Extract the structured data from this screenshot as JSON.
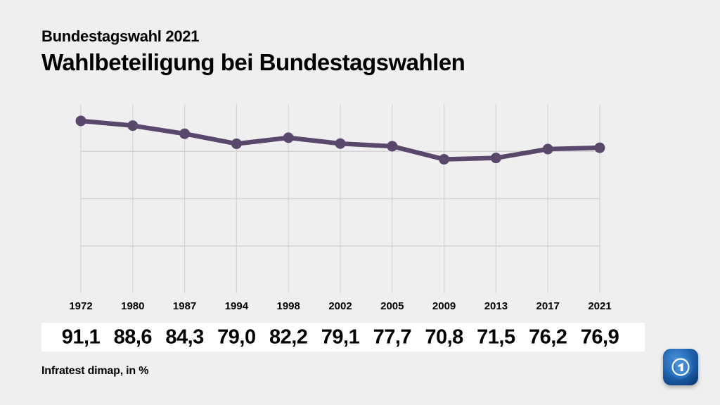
{
  "header": {
    "kicker": "Bundestagswahl 2021",
    "title": "Wahlbeteiligung bei Bundestagswahlen"
  },
  "chart_data": {
    "type": "line",
    "title": "Wahlbeteiligung bei Bundestagswahlen",
    "categories": [
      "1972",
      "1980",
      "1987",
      "1994",
      "1998",
      "2002",
      "2005",
      "2009",
      "2013",
      "2017",
      "2021"
    ],
    "series": [
      {
        "name": "Wahlbeteiligung",
        "values": [
          91.1,
          88.6,
          84.3,
          79.0,
          82.2,
          79.1,
          77.7,
          70.8,
          71.5,
          76.2,
          76.9
        ]
      }
    ],
    "values_display": [
      "91,1",
      "88,6",
      "84,3",
      "79,0",
      "82,2",
      "79,1",
      "77,7",
      "70,8",
      "71,5",
      "76,2",
      "76,9"
    ],
    "unit": "%",
    "xlabel": "",
    "ylabel": "",
    "ylim": [
      0,
      100
    ],
    "y_gridlines": [
      25,
      50,
      75
    ],
    "grid": true,
    "legend": "none",
    "line_color": "#59486b"
  },
  "footer": {
    "source": "Infratest dimap, in %"
  },
  "logo": {
    "name": "ARD tagesschau logo"
  },
  "colors": {
    "background": "#f0eff0",
    "band": "#ffffff",
    "grid": "#d6d3d7",
    "text": "#000000"
  }
}
